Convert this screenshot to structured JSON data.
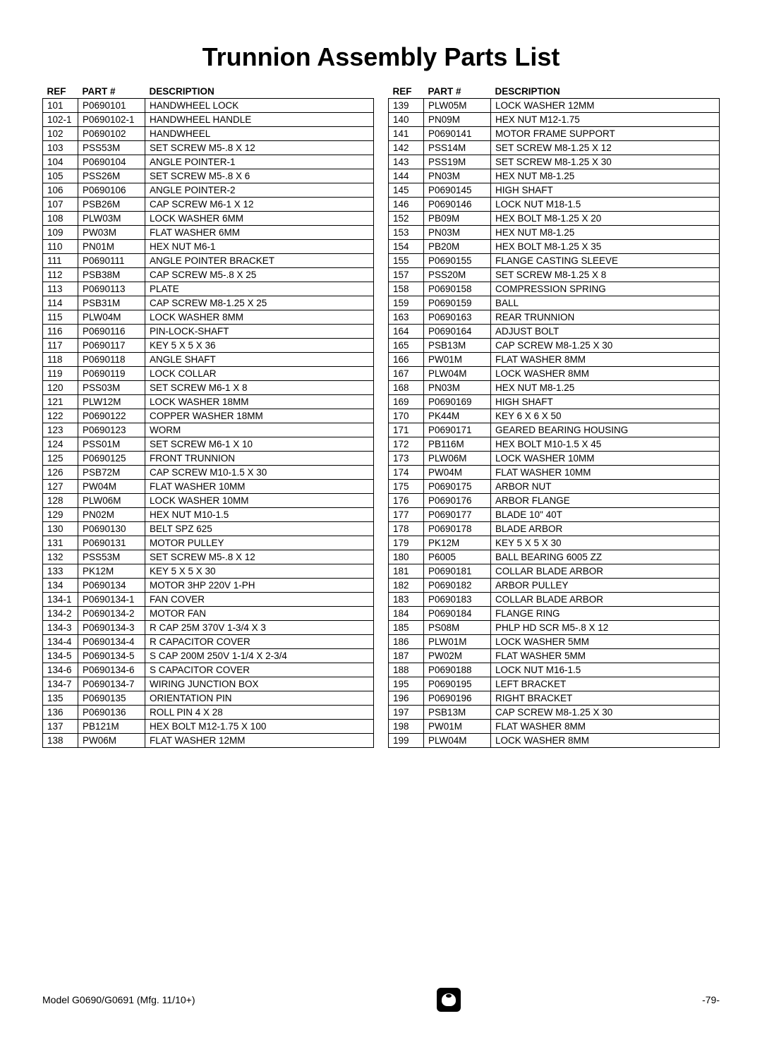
{
  "title": "Trunnion Assembly Parts List",
  "headers": {
    "ref": "REF",
    "part": "PART #",
    "desc": "DESCRIPTION"
  },
  "left": [
    {
      "ref": "101",
      "part": "P0690101",
      "desc": "HANDWHEEL LOCK"
    },
    {
      "ref": "102-1",
      "part": "P0690102-1",
      "desc": "HANDWHEEL HANDLE"
    },
    {
      "ref": "102",
      "part": "P0690102",
      "desc": "HANDWHEEL"
    },
    {
      "ref": "103",
      "part": "PSS53M",
      "desc": "SET SCREW M5-.8 X 12"
    },
    {
      "ref": "104",
      "part": "P0690104",
      "desc": "ANGLE POINTER-1"
    },
    {
      "ref": "105",
      "part": "PSS26M",
      "desc": "SET SCREW M5-.8 X 6"
    },
    {
      "ref": "106",
      "part": "P0690106",
      "desc": "ANGLE POINTER-2"
    },
    {
      "ref": "107",
      "part": "PSB26M",
      "desc": "CAP SCREW M6-1 X 12"
    },
    {
      "ref": "108",
      "part": "PLW03M",
      "desc": "LOCK WASHER 6MM"
    },
    {
      "ref": "109",
      "part": "PW03M",
      "desc": "FLAT WASHER 6MM"
    },
    {
      "ref": "110",
      "part": "PN01M",
      "desc": "HEX NUT M6-1"
    },
    {
      "ref": "111",
      "part": "P0690111",
      "desc": "ANGLE POINTER BRACKET"
    },
    {
      "ref": "112",
      "part": "PSB38M",
      "desc": "CAP SCREW M5-.8 X 25"
    },
    {
      "ref": "113",
      "part": "P0690113",
      "desc": "PLATE"
    },
    {
      "ref": "114",
      "part": "PSB31M",
      "desc": "CAP SCREW M8-1.25 X 25"
    },
    {
      "ref": "115",
      "part": "PLW04M",
      "desc": "LOCK WASHER 8MM"
    },
    {
      "ref": "116",
      "part": "P0690116",
      "desc": "PIN-LOCK-SHAFT"
    },
    {
      "ref": "117",
      "part": "P0690117",
      "desc": "KEY 5 X 5 X 36"
    },
    {
      "ref": "118",
      "part": "P0690118",
      "desc": "ANGLE SHAFT"
    },
    {
      "ref": "119",
      "part": "P0690119",
      "desc": "LOCK COLLAR"
    },
    {
      "ref": "120",
      "part": "PSS03M",
      "desc": "SET SCREW M6-1 X 8"
    },
    {
      "ref": "121",
      "part": "PLW12M",
      "desc": "LOCK WASHER 18MM"
    },
    {
      "ref": "122",
      "part": "P0690122",
      "desc": "COPPER WASHER 18MM"
    },
    {
      "ref": "123",
      "part": "P0690123",
      "desc": "WORM"
    },
    {
      "ref": "124",
      "part": "PSS01M",
      "desc": "SET SCREW M6-1 X 10"
    },
    {
      "ref": "125",
      "part": "P0690125",
      "desc": "FRONT TRUNNION"
    },
    {
      "ref": "126",
      "part": "PSB72M",
      "desc": "CAP SCREW M10-1.5 X 30"
    },
    {
      "ref": "127",
      "part": "PW04M",
      "desc": "FLAT WASHER 10MM"
    },
    {
      "ref": "128",
      "part": "PLW06M",
      "desc": "LOCK WASHER 10MM"
    },
    {
      "ref": "129",
      "part": "PN02M",
      "desc": "HEX NUT M10-1.5"
    },
    {
      "ref": "130",
      "part": "P0690130",
      "desc": "BELT SPZ 625"
    },
    {
      "ref": "131",
      "part": "P0690131",
      "desc": "MOTOR PULLEY"
    },
    {
      "ref": "132",
      "part": "PSS53M",
      "desc": "SET SCREW M5-.8 X 12"
    },
    {
      "ref": "133",
      "part": "PK12M",
      "desc": "KEY 5 X 5 X 30"
    },
    {
      "ref": "134",
      "part": "P0690134",
      "desc": "MOTOR 3HP 220V 1-PH"
    },
    {
      "ref": "134-1",
      "part": "P0690134-1",
      "desc": "FAN COVER"
    },
    {
      "ref": "134-2",
      "part": "P0690134-2",
      "desc": "MOTOR FAN"
    },
    {
      "ref": "134-3",
      "part": "P0690134-3",
      "desc": "R CAP 25M 370V 1-3/4 X 3"
    },
    {
      "ref": "134-4",
      "part": "P0690134-4",
      "desc": "R  CAPACITOR COVER"
    },
    {
      "ref": "134-5",
      "part": "P0690134-5",
      "desc": "S CAP 200M 250V 1-1/4 X 2-3/4"
    },
    {
      "ref": "134-6",
      "part": "P0690134-6",
      "desc": "S  CAPACITOR COVER"
    },
    {
      "ref": "134-7",
      "part": "P0690134-7",
      "desc": "WIRING JUNCTION BOX"
    },
    {
      "ref": "135",
      "part": "P0690135",
      "desc": "ORIENTATION PIN"
    },
    {
      "ref": "136",
      "part": "P0690136",
      "desc": "ROLL PIN 4 X 28"
    },
    {
      "ref": "137",
      "part": "PB121M",
      "desc": "HEX BOLT M12-1.75 X 100"
    },
    {
      "ref": "138",
      "part": "PW06M",
      "desc": "FLAT WASHER 12MM"
    }
  ],
  "right": [
    {
      "ref": "139",
      "part": "PLW05M",
      "desc": "LOCK WASHER 12MM"
    },
    {
      "ref": "140",
      "part": "PN09M",
      "desc": "HEX NUT M12-1.75"
    },
    {
      "ref": "141",
      "part": "P0690141",
      "desc": "MOTOR FRAME SUPPORT"
    },
    {
      "ref": "142",
      "part": "PSS14M",
      "desc": "SET SCREW M8-1.25 X 12"
    },
    {
      "ref": "143",
      "part": "PSS19M",
      "desc": "SET SCREW M8-1.25 X 30"
    },
    {
      "ref": "144",
      "part": "PN03M",
      "desc": "HEX NUT M8-1.25"
    },
    {
      "ref": "145",
      "part": "P0690145",
      "desc": "HIGH SHAFT"
    },
    {
      "ref": "146",
      "part": "P0690146",
      "desc": "LOCK NUT M18-1.5"
    },
    {
      "ref": "152",
      "part": "PB09M",
      "desc": "HEX BOLT M8-1.25 X 20"
    },
    {
      "ref": "153",
      "part": "PN03M",
      "desc": "HEX NUT M8-1.25"
    },
    {
      "ref": "154",
      "part": "PB20M",
      "desc": "HEX BOLT M8-1.25 X 35"
    },
    {
      "ref": "155",
      "part": "P0690155",
      "desc": "FLANGE CASTING SLEEVE"
    },
    {
      "ref": "157",
      "part": "PSS20M",
      "desc": "SET SCREW M8-1.25 X 8"
    },
    {
      "ref": "158",
      "part": "P0690158",
      "desc": "COMPRESSION SPRING"
    },
    {
      "ref": "159",
      "part": "P0690159",
      "desc": "BALL"
    },
    {
      "ref": "163",
      "part": "P0690163",
      "desc": "REAR TRUNNION"
    },
    {
      "ref": "164",
      "part": "P0690164",
      "desc": "ADJUST BOLT"
    },
    {
      "ref": "165",
      "part": "PSB13M",
      "desc": "CAP SCREW M8-1.25 X 30"
    },
    {
      "ref": "166",
      "part": "PW01M",
      "desc": "FLAT WASHER 8MM"
    },
    {
      "ref": "167",
      "part": "PLW04M",
      "desc": "LOCK WASHER 8MM"
    },
    {
      "ref": "168",
      "part": "PN03M",
      "desc": "HEX NUT M8-1.25"
    },
    {
      "ref": "169",
      "part": "P0690169",
      "desc": "HIGH SHAFT"
    },
    {
      "ref": "170",
      "part": "PK44M",
      "desc": "KEY 6 X 6 X 50"
    },
    {
      "ref": "171",
      "part": "P0690171",
      "desc": "GEARED BEARING HOUSING"
    },
    {
      "ref": "172",
      "part": "PB116M",
      "desc": "HEX BOLT M10-1.5 X 45"
    },
    {
      "ref": "173",
      "part": "PLW06M",
      "desc": "LOCK WASHER 10MM"
    },
    {
      "ref": "174",
      "part": "PW04M",
      "desc": "FLAT WASHER 10MM"
    },
    {
      "ref": "175",
      "part": "P0690175",
      "desc": "ARBOR NUT"
    },
    {
      "ref": "176",
      "part": "P0690176",
      "desc": "ARBOR FLANGE"
    },
    {
      "ref": "177",
      "part": "P0690177",
      "desc": "BLADE 10\" 40T"
    },
    {
      "ref": "178",
      "part": "P0690178",
      "desc": "BLADE ARBOR"
    },
    {
      "ref": "179",
      "part": "PK12M",
      "desc": "KEY 5 X 5 X 30"
    },
    {
      "ref": "180",
      "part": "P6005",
      "desc": "BALL BEARING 6005 ZZ"
    },
    {
      "ref": "181",
      "part": "P0690181",
      "desc": "COLLAR BLADE ARBOR"
    },
    {
      "ref": "182",
      "part": "P0690182",
      "desc": "ARBOR PULLEY"
    },
    {
      "ref": "183",
      "part": "P0690183",
      "desc": "COLLAR BLADE ARBOR"
    },
    {
      "ref": "184",
      "part": "P0690184",
      "desc": "FLANGE RING"
    },
    {
      "ref": "185",
      "part": "PS08M",
      "desc": "PHLP HD SCR M5-.8 X 12"
    },
    {
      "ref": "186",
      "part": "PLW01M",
      "desc": "LOCK WASHER 5MM"
    },
    {
      "ref": "187",
      "part": "PW02M",
      "desc": "FLAT WASHER 5MM"
    },
    {
      "ref": "188",
      "part": "P0690188",
      "desc": "LOCK NUT M16-1.5"
    },
    {
      "ref": "195",
      "part": "P0690195",
      "desc": "LEFT BRACKET"
    },
    {
      "ref": "196",
      "part": "P0690196",
      "desc": "RIGHT BRACKET"
    },
    {
      "ref": "197",
      "part": "PSB13M",
      "desc": "CAP SCREW M8-1.25 X 30"
    },
    {
      "ref": "198",
      "part": "PW01M",
      "desc": "FLAT WASHER 8MM"
    },
    {
      "ref": "199",
      "part": "PLW04M",
      "desc": "LOCK WASHER 8MM"
    }
  ],
  "footer": {
    "model": "Model G0690/G0691 (Mfg. 11/10+)",
    "page": "-79-"
  }
}
